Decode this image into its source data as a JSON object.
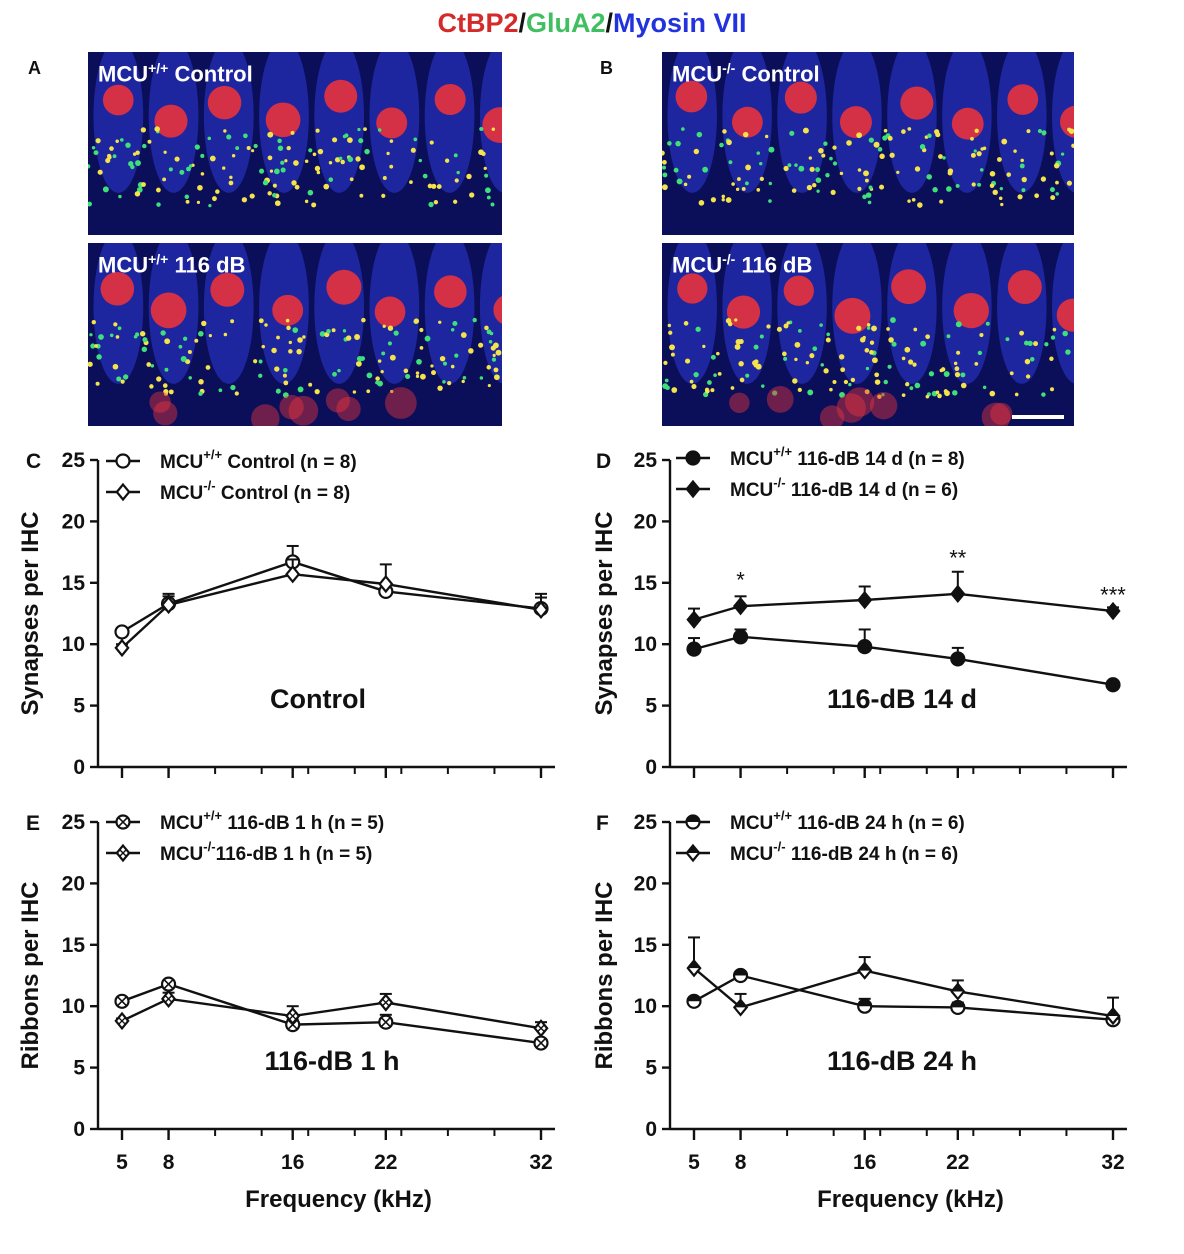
{
  "figure_title": {
    "parts": [
      {
        "text": "CtBP2",
        "color": "#d42a2a"
      },
      {
        "text": "/",
        "color": "#111111"
      },
      {
        "text": "GluA2",
        "color": "#3fbf5f"
      },
      {
        "text": "/",
        "color": "#111111"
      },
      {
        "text": "Myosin VII",
        "color": "#2233dd"
      }
    ]
  },
  "colors": {
    "axis": "#111111",
    "cell_nucleus": "#e8323c",
    "hair_cell": "#2f3bd8",
    "background_tissue": "#0b0f5a",
    "puncta_yellow": "#f4e34a",
    "puncta_green": "#3fe07a"
  },
  "micrographs": [
    {
      "panel": "A",
      "label_prefix": "MCU",
      "label_sup": "+/+",
      "label_suffix": " Control"
    },
    {
      "panel": "",
      "label_prefix": "MCU",
      "label_sup": "+/+",
      "label_suffix": " 116 dB"
    },
    {
      "panel": "B",
      "label_prefix": "MCU",
      "label_sup": "-/-",
      "label_suffix": " Control"
    },
    {
      "panel": "",
      "label_prefix": "MCU",
      "label_sup": "-/-",
      "label_suffix": " 116 dB"
    }
  ],
  "chart_data": [
    {
      "panel": "C",
      "type": "line",
      "title": "",
      "inner_label": "Control",
      "ylabel": "Synapses per IHC",
      "xlabel": "",
      "ylim": [
        0,
        25
      ],
      "yticks": [
        0,
        5,
        10,
        15,
        20,
        25
      ],
      "x": [
        5,
        8,
        16,
        22,
        32
      ],
      "show_xtick_labels": false,
      "series": [
        {
          "name_prefix": "MCU",
          "name_sup": "+/+",
          "name_suffix": " Control (n = 8)",
          "marker": "open-circle",
          "values": [
            11.0,
            13.3,
            16.7,
            14.3,
            12.9
          ],
          "errors": [
            0.3,
            0.8,
            1.3,
            0.6,
            0.9
          ]
        },
        {
          "name_prefix": "MCU",
          "name_sup": "-/-",
          "name_suffix": " Control  (n = 8)",
          "marker": "open-diamond",
          "values": [
            9.7,
            13.2,
            15.7,
            14.9,
            12.8
          ],
          "errors": [
            0.3,
            0.7,
            1.2,
            1.6,
            1.3
          ]
        }
      ],
      "significance": []
    },
    {
      "panel": "D",
      "type": "line",
      "title": "",
      "inner_label": "116-dB 14 d",
      "ylabel": "Synapses per IHC",
      "xlabel": "",
      "ylim": [
        0,
        25
      ],
      "yticks": [
        0,
        5,
        10,
        15,
        20,
        25
      ],
      "x": [
        5,
        8,
        16,
        22,
        32
      ],
      "show_xtick_labels": false,
      "series": [
        {
          "name_prefix": "MCU",
          "name_sup": "+/+",
          "name_suffix": " 116-dB 14 d (n = 8)",
          "marker": "filled-circle",
          "values": [
            9.6,
            10.6,
            9.8,
            8.8,
            6.7
          ],
          "errors": [
            0.9,
            0.6,
            1.4,
            0.9,
            0.1
          ]
        },
        {
          "name_prefix": "MCU",
          "name_sup": "-/-",
          "name_suffix": " 116-dB 14 d  (n = 6)",
          "marker": "filled-diamond",
          "values": [
            12.0,
            13.1,
            13.6,
            14.1,
            12.7
          ],
          "errors": [
            0.9,
            0.8,
            1.1,
            1.8,
            0.3
          ]
        }
      ],
      "significance": [
        {
          "x": 8,
          "text": "*",
          "y": 14.6
        },
        {
          "x": 22,
          "text": "**",
          "y": 16.4
        },
        {
          "x": 32,
          "text": "***",
          "y": 13.4
        }
      ]
    },
    {
      "panel": "E",
      "type": "line",
      "title": "",
      "inner_label": "116-dB 1 h",
      "ylabel": "Ribbons per IHC",
      "xlabel": "Frequency (kHz)",
      "ylim": [
        0,
        25
      ],
      "yticks": [
        0,
        5,
        10,
        15,
        20,
        25
      ],
      "x": [
        5,
        8,
        16,
        22,
        32
      ],
      "show_xtick_labels": true,
      "series": [
        {
          "name_prefix": "MCU",
          "name_sup": "+/+",
          "name_suffix": " 116-dB 1 h (n = 5)",
          "marker": "crossed-circle",
          "values": [
            10.4,
            11.8,
            8.5,
            8.7,
            7.0
          ],
          "errors": [
            0.2,
            0.3,
            0.4,
            0.6,
            0.3
          ]
        },
        {
          "name_prefix": "MCU",
          "name_sup": "-/-",
          "name_suffix": "116-dB 1 h   (n = 5)",
          "marker": "crossed-diamond",
          "values": [
            8.8,
            10.6,
            9.2,
            10.3,
            8.2
          ],
          "errors": [
            0.2,
            0.5,
            0.8,
            0.7,
            0.5
          ]
        }
      ],
      "significance": []
    },
    {
      "panel": "F",
      "type": "line",
      "title": "",
      "inner_label": "116-dB 24 h",
      "ylabel": "Ribbons per IHC",
      "xlabel": "Frequency (kHz)",
      "ylim": [
        0,
        25
      ],
      "yticks": [
        0,
        5,
        10,
        15,
        20,
        25
      ],
      "x": [
        5,
        8,
        16,
        22,
        32
      ],
      "show_xtick_labels": true,
      "series": [
        {
          "name_prefix": "MCU",
          "name_sup": "+/+",
          "name_suffix": " 116-dB 24 h (n = 6)",
          "marker": "half-circle",
          "values": [
            10.4,
            12.5,
            10.0,
            9.9,
            8.9
          ],
          "errors": [
            0.2,
            0.3,
            0.6,
            0.4,
            0.3
          ]
        },
        {
          "name_prefix": "MCU",
          "name_sup": "-/-",
          "name_suffix": " 116-dB 24 h   (n = 6)",
          "marker": "half-diamond",
          "values": [
            13.1,
            9.9,
            12.9,
            11.2,
            9.2
          ],
          "errors": [
            2.5,
            1.1,
            1.1,
            0.9,
            1.5
          ]
        }
      ],
      "significance": []
    }
  ]
}
